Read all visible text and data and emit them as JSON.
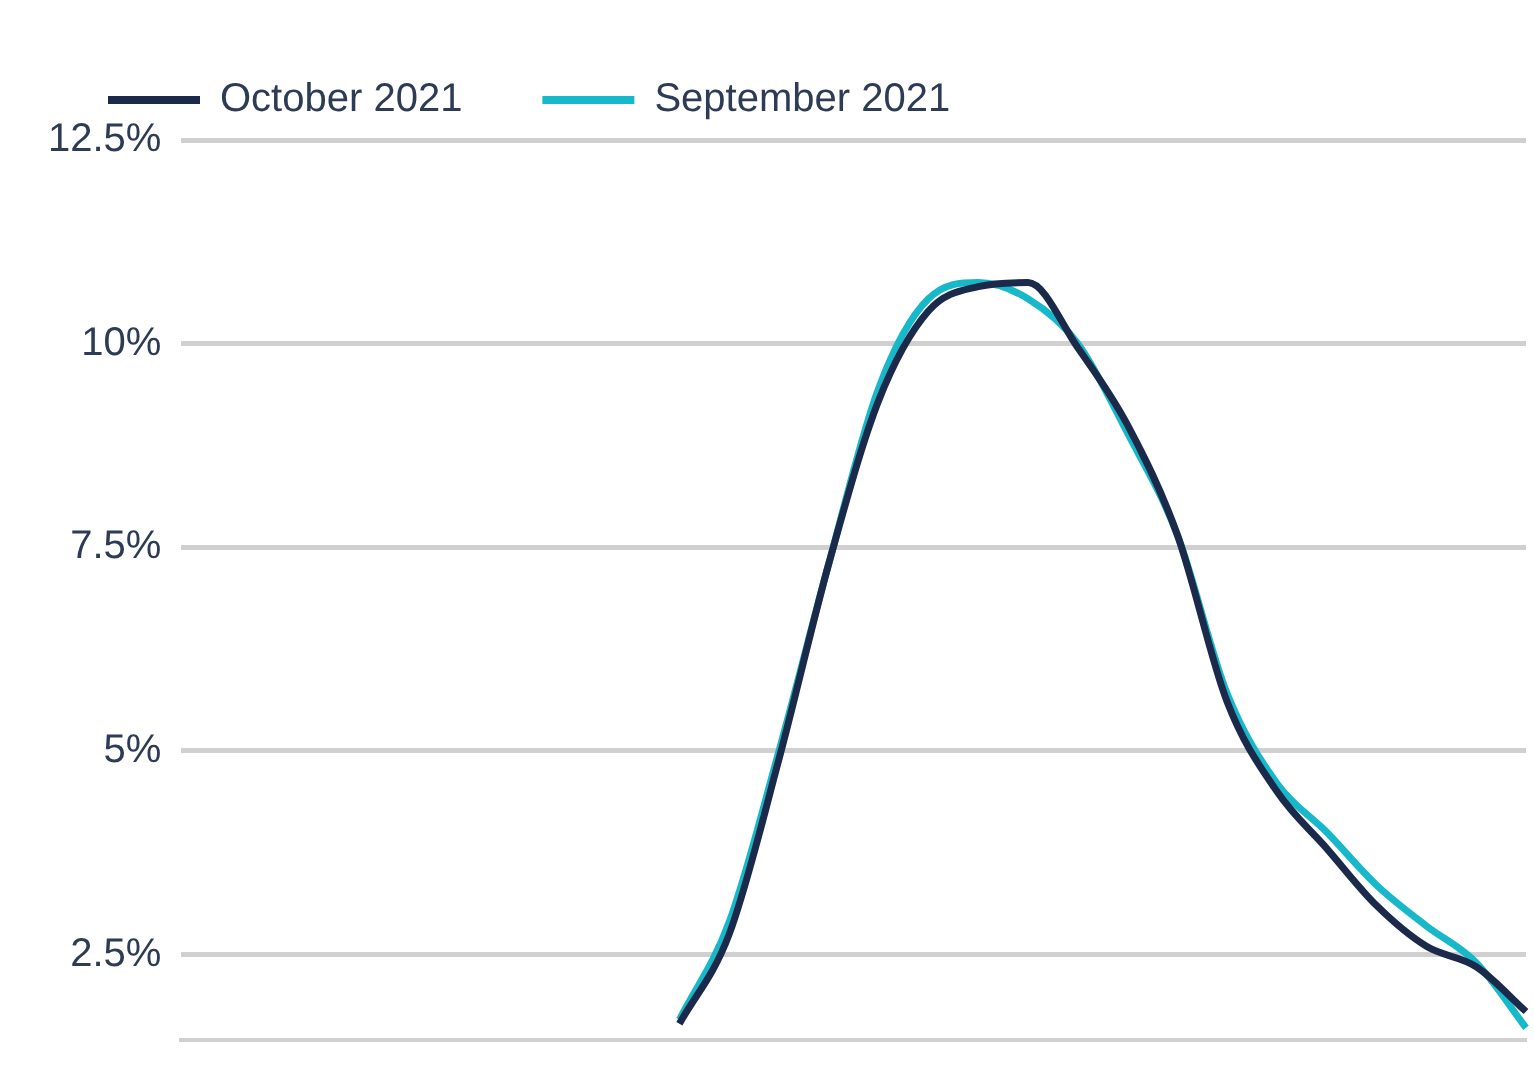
{
  "chart_data": {
    "type": "line",
    "categories": [
      null,
      null,
      null,
      null,
      null,
      null,
      null,
      null,
      null,
      null,
      null,
      null,
      null,
      null,
      null,
      null,
      null,
      null,
      null,
      null,
      null,
      null,
      null,
      null,
      null,
      null,
      null,
      null
    ],
    "series": [
      {
        "name": "October 2021",
        "color": "#1b2a4a",
        "values": [
          null,
          null,
          null,
          null,
          null,
          null,
          null,
          null,
          null,
          null,
          1.65,
          2.75,
          4.9,
          7.3,
          9.3,
          10.4,
          10.7,
          10.75,
          9.95,
          9.0,
          7.65,
          5.6,
          4.5,
          3.8,
          3.1,
          2.6,
          2.35,
          1.8
        ]
      },
      {
        "name": "September 2021",
        "color": "#17b8c9",
        "values": [
          null,
          null,
          null,
          null,
          null,
          null,
          null,
          null,
          null,
          null,
          1.7,
          2.9,
          5.0,
          7.3,
          9.45,
          10.55,
          10.75,
          10.55,
          10.0,
          8.9,
          7.65,
          5.7,
          4.6,
          4.0,
          3.35,
          2.85,
          2.4,
          1.6
        ]
      }
    ],
    "ylim": [
      1.45,
      12.5
    ],
    "yticks": [
      {
        "value": 2.5,
        "label": "2.5%"
      },
      {
        "value": 5,
        "label": "5%"
      },
      {
        "value": 7.5,
        "label": "7.5%"
      },
      {
        "value": 10,
        "label": "10%"
      },
      {
        "value": 12.5,
        "label": "12.5%"
      }
    ],
    "grid": "y",
    "legend": "top left",
    "marker": "none",
    "line_style": "solid",
    "tick_labels": "y"
  }
}
